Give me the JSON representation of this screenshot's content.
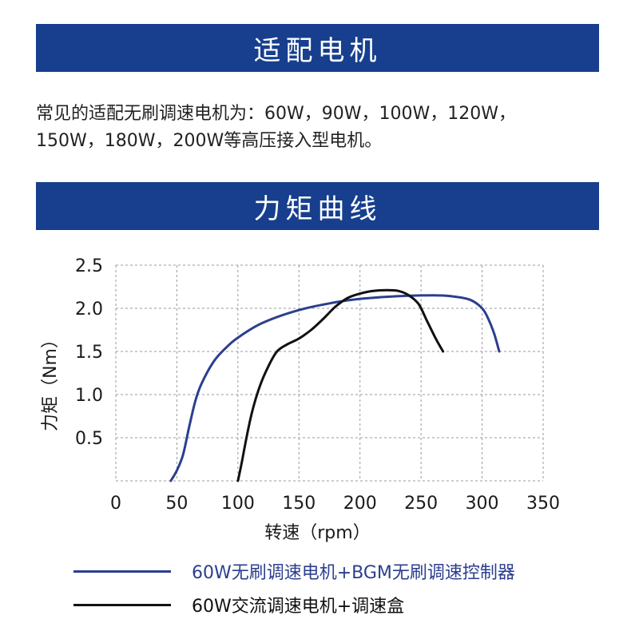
{
  "section1": {
    "title": "适配电机"
  },
  "description": {
    "line1": "常见的适配无刷调速电机为：60W，90W，100W，120W，",
    "line2": "150W，180W，200W等高压接入型电机。"
  },
  "section2": {
    "title": "力矩曲线"
  },
  "colors": {
    "banner": "#173f8e",
    "series_blue": "#2b3f8f",
    "series_black": "#111111",
    "grid": "#9a9a9a"
  },
  "chart_data": {
    "type": "line",
    "xlabel": "转速（rpm）",
    "ylabel": "力矩（Nm）",
    "xlim": [
      0,
      350
    ],
    "ylim": [
      0,
      2.5
    ],
    "xticks": [
      "0",
      "50",
      "100",
      "150",
      "200",
      "250",
      "300",
      "350"
    ],
    "yticks": [
      "0.5",
      "1.0",
      "1.5",
      "2.0",
      "2.5"
    ],
    "grid": "dashed",
    "legend_position": "bottom",
    "series": [
      {
        "name": "60W无刷调速电机+BGM无刷调速控制器",
        "color": "#2b3f8f",
        "points": [
          [
            45,
            0
          ],
          [
            50,
            0.12
          ],
          [
            55,
            0.3
          ],
          [
            60,
            0.62
          ],
          [
            65,
            0.92
          ],
          [
            70,
            1.12
          ],
          [
            80,
            1.38
          ],
          [
            90,
            1.54
          ],
          [
            100,
            1.66
          ],
          [
            120,
            1.83
          ],
          [
            150,
            1.98
          ],
          [
            180,
            2.07
          ],
          [
            200,
            2.11
          ],
          [
            230,
            2.14
          ],
          [
            260,
            2.15
          ],
          [
            275,
            2.14
          ],
          [
            290,
            2.1
          ],
          [
            300,
            2.0
          ],
          [
            305,
            1.88
          ],
          [
            310,
            1.7
          ],
          [
            314,
            1.5
          ]
        ]
      },
      {
        "name": "60W交流调速电机+调速盒",
        "color": "#111111",
        "points": [
          [
            100,
            0
          ],
          [
            103,
            0.2
          ],
          [
            107,
            0.5
          ],
          [
            112,
            0.82
          ],
          [
            118,
            1.1
          ],
          [
            125,
            1.33
          ],
          [
            132,
            1.5
          ],
          [
            140,
            1.58
          ],
          [
            150,
            1.65
          ],
          [
            160,
            1.75
          ],
          [
            170,
            1.88
          ],
          [
            180,
            2.02
          ],
          [
            190,
            2.12
          ],
          [
            200,
            2.17
          ],
          [
            210,
            2.2
          ],
          [
            222,
            2.21
          ],
          [
            232,
            2.2
          ],
          [
            240,
            2.15
          ],
          [
            248,
            2.05
          ],
          [
            255,
            1.85
          ],
          [
            262,
            1.65
          ],
          [
            268,
            1.5
          ]
        ]
      }
    ]
  }
}
